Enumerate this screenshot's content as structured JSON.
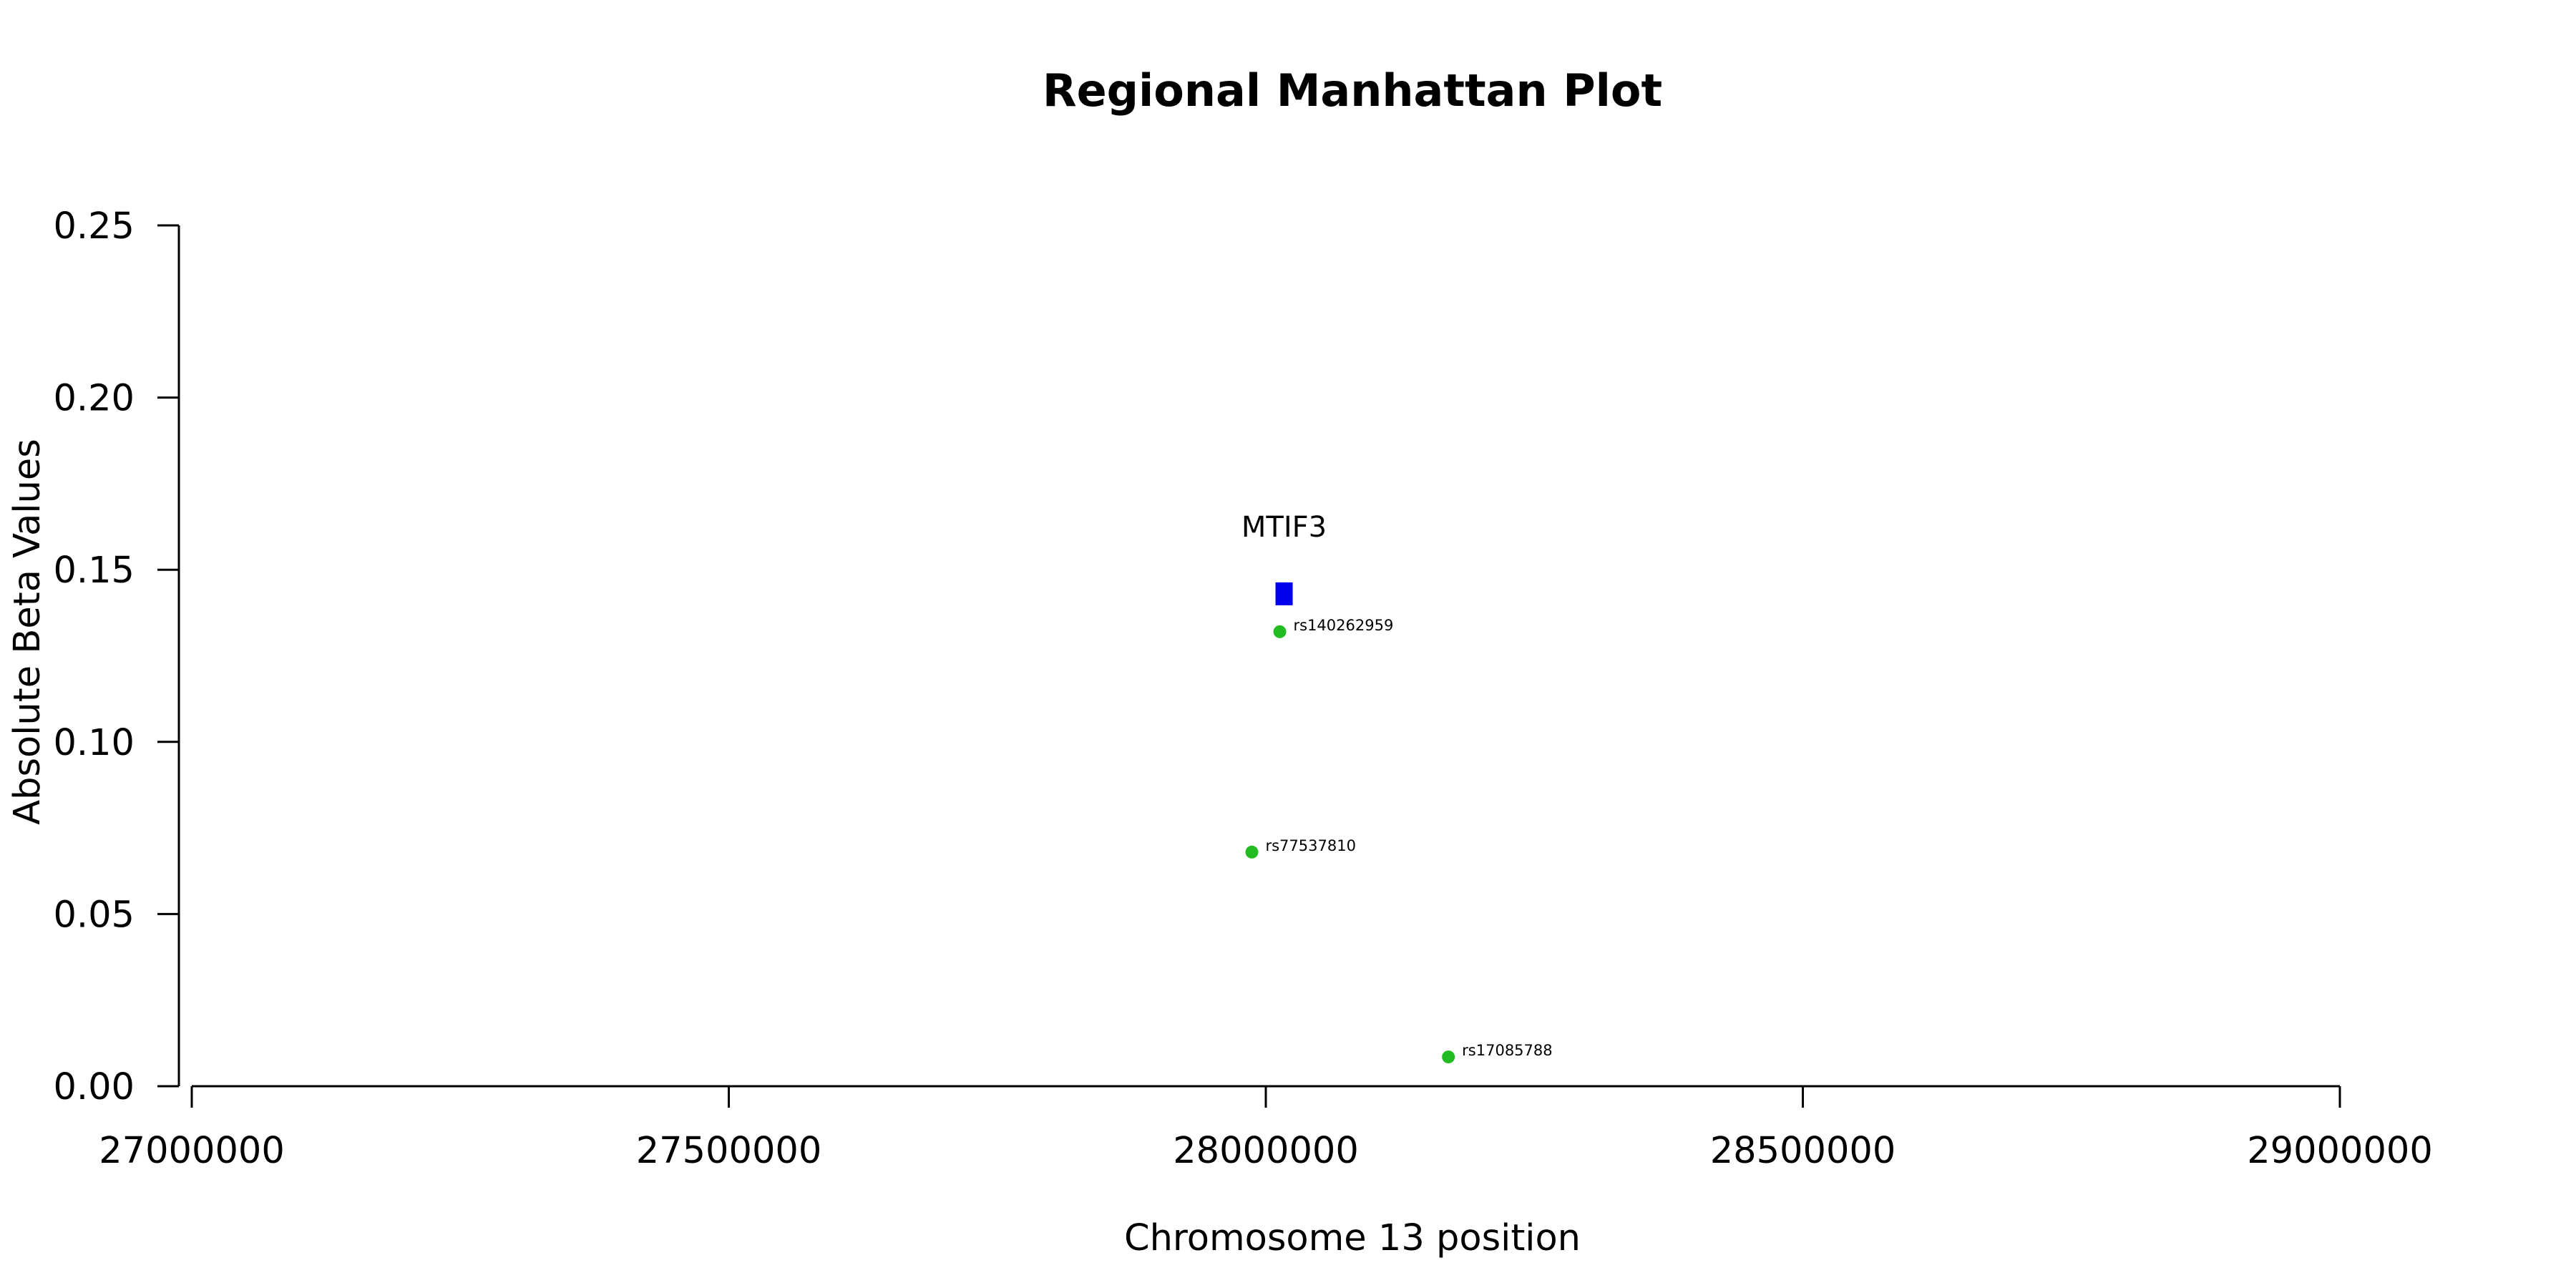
{
  "chart_data": {
    "type": "scatter",
    "title": "Regional Manhattan Plot",
    "xlabel": "Chromosome 13 position",
    "ylabel": "Absolute Beta Values",
    "xlim": [
      27000000,
      29000000
    ],
    "ylim": [
      0,
      0.25
    ],
    "x_ticks": [
      "27000000",
      "27500000",
      "28000000",
      "28500000",
      "29000000"
    ],
    "y_ticks": [
      "0.00",
      "0.05",
      "0.10",
      "0.15",
      "0.20",
      "0.25"
    ],
    "grid": false,
    "gene": {
      "name": "MTIF3",
      "start": 28009000,
      "end": 28025000,
      "value": 0.143,
      "color": "#0000ee"
    },
    "snps": [
      {
        "id": "rs140262959",
        "x": 28013000,
        "y": 0.132,
        "color": "#22bb22"
      },
      {
        "id": "rs77537810",
        "x": 27987000,
        "y": 0.068,
        "color": "#22bb22"
      },
      {
        "id": "rs17085788",
        "x": 28170000,
        "y": 0.0085,
        "color": "#22bb22"
      }
    ]
  }
}
